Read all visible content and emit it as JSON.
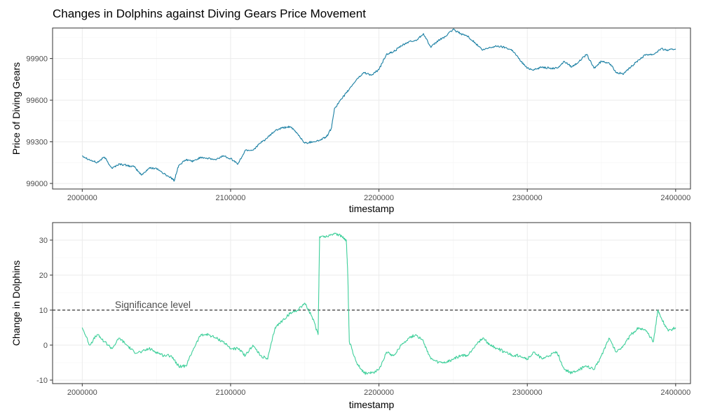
{
  "title": "Changes in Dolphins against Diving Gears Price Movement",
  "colors": {
    "top_line": "#1a7fa3",
    "bottom_line": "#3ecf9a",
    "grid": "#ebebeb",
    "panel_border": "#333333"
  },
  "chart_data": [
    {
      "type": "line",
      "xlabel": "timestamp",
      "ylabel": "Price of Diving Gears",
      "xlim": [
        1980000,
        2410000
      ],
      "ylim": [
        98960,
        100120
      ],
      "x_ticks": [
        2000000,
        2100000,
        2200000,
        2300000,
        2400000
      ],
      "x_tick_labels": [
        "2000000",
        "2100000",
        "2200000",
        "2300000",
        "2400000"
      ],
      "y_ticks": [
        99000,
        99300,
        99600,
        99900
      ],
      "y_tick_labels": [
        "99000",
        "99300",
        "99600",
        "99900"
      ],
      "grid": true,
      "series": [
        {
          "x": [
            2000000,
            2005000,
            2010000,
            2015000,
            2020000,
            2025000,
            2030000,
            2035000,
            2040000,
            2045000,
            2050000,
            2055000,
            2060000,
            2062000,
            2065000,
            2070000,
            2075000,
            2080000,
            2085000,
            2090000,
            2095000,
            2100000,
            2105000,
            2110000,
            2115000,
            2120000,
            2125000,
            2130000,
            2135000,
            2140000,
            2145000,
            2150000,
            2155000,
            2160000,
            2165000,
            2168000,
            2170000,
            2175000,
            2180000,
            2185000,
            2190000,
            2195000,
            2200000,
            2205000,
            2210000,
            2215000,
            2220000,
            2225000,
            2230000,
            2235000,
            2240000,
            2245000,
            2250000,
            2255000,
            2260000,
            2265000,
            2270000,
            2275000,
            2280000,
            2285000,
            2290000,
            2295000,
            2300000,
            2305000,
            2310000,
            2315000,
            2320000,
            2325000,
            2330000,
            2335000,
            2340000,
            2345000,
            2350000,
            2355000,
            2360000,
            2365000,
            2370000,
            2375000,
            2380000,
            2385000,
            2390000,
            2395000,
            2400000
          ],
          "y": [
            99200,
            99170,
            99150,
            99190,
            99110,
            99140,
            99130,
            99120,
            99060,
            99110,
            99110,
            99070,
            99040,
            99020,
            99130,
            99170,
            99160,
            99190,
            99180,
            99170,
            99200,
            99180,
            99140,
            99240,
            99240,
            99290,
            99330,
            99380,
            99400,
            99410,
            99360,
            99290,
            99300,
            99310,
            99340,
            99400,
            99540,
            99610,
            99680,
            99750,
            99800,
            99780,
            99820,
            99930,
            99950,
            99990,
            100020,
            100030,
            100080,
            99980,
            100030,
            100060,
            100110,
            100080,
            100060,
            100010,
            99960,
            99980,
            99990,
            99980,
            99960,
            99890,
            99830,
            99820,
            99840,
            99830,
            99830,
            99880,
            99840,
            99880,
            99930,
            99830,
            99880,
            99870,
            99800,
            99790,
            99840,
            99890,
            99930,
            99930,
            99970,
            99960,
            99970
          ]
        }
      ]
    },
    {
      "type": "line",
      "xlabel": "timestamp",
      "ylabel": "Change in Dolphins",
      "xlim": [
        1980000,
        2410000
      ],
      "ylim": [
        -11,
        35
      ],
      "x_ticks": [
        2000000,
        2100000,
        2200000,
        2300000,
        2400000
      ],
      "x_tick_labels": [
        "2000000",
        "2100000",
        "2200000",
        "2300000",
        "2400000"
      ],
      "y_ticks": [
        -10,
        0,
        10,
        20,
        30
      ],
      "y_tick_labels": [
        "-10",
        "0",
        "10",
        "20",
        "30"
      ],
      "grid": true,
      "reference_line": {
        "y": 10,
        "style": "dashed",
        "label": "Significance level"
      },
      "series": [
        {
          "x": [
            2000000,
            2005000,
            2010000,
            2015000,
            2020000,
            2025000,
            2030000,
            2035000,
            2040000,
            2045000,
            2050000,
            2055000,
            2060000,
            2065000,
            2070000,
            2075000,
            2080000,
            2085000,
            2090000,
            2095000,
            2100000,
            2105000,
            2110000,
            2115000,
            2120000,
            2125000,
            2130000,
            2135000,
            2140000,
            2145000,
            2150000,
            2155000,
            2159000,
            2160000,
            2165000,
            2170000,
            2175000,
            2178000,
            2179000,
            2180000,
            2185000,
            2190000,
            2195000,
            2200000,
            2205000,
            2210000,
            2215000,
            2220000,
            2225000,
            2230000,
            2235000,
            2240000,
            2245000,
            2250000,
            2255000,
            2260000,
            2265000,
            2270000,
            2275000,
            2280000,
            2285000,
            2290000,
            2295000,
            2300000,
            2305000,
            2310000,
            2315000,
            2320000,
            2325000,
            2330000,
            2335000,
            2340000,
            2345000,
            2350000,
            2355000,
            2360000,
            2365000,
            2370000,
            2375000,
            2380000,
            2385000,
            2388000,
            2390000,
            2395000,
            2400000
          ],
          "y": [
            5,
            0,
            3,
            1,
            -1,
            2,
            0,
            -2,
            -2,
            -1,
            -2,
            -3,
            -3,
            -6,
            -6,
            -1,
            3,
            3,
            2,
            1,
            -1,
            -1,
            -3,
            0,
            -3,
            -4,
            5,
            7,
            9,
            10,
            12,
            8,
            3,
            31,
            31,
            32,
            31,
            30,
            20,
            1,
            -5,
            -8,
            -8,
            -7,
            -2,
            -3,
            0,
            2,
            3,
            1,
            -4,
            -5,
            -5,
            -4,
            -3,
            -3,
            0,
            2,
            0,
            -1,
            -2,
            -3,
            -3,
            -4,
            -2,
            -4,
            -3,
            -2,
            -7,
            -8,
            -7,
            -6,
            -7,
            -3,
            2,
            -2,
            0,
            3,
            5,
            4,
            1,
            10,
            8,
            4,
            5
          ]
        }
      ]
    }
  ]
}
